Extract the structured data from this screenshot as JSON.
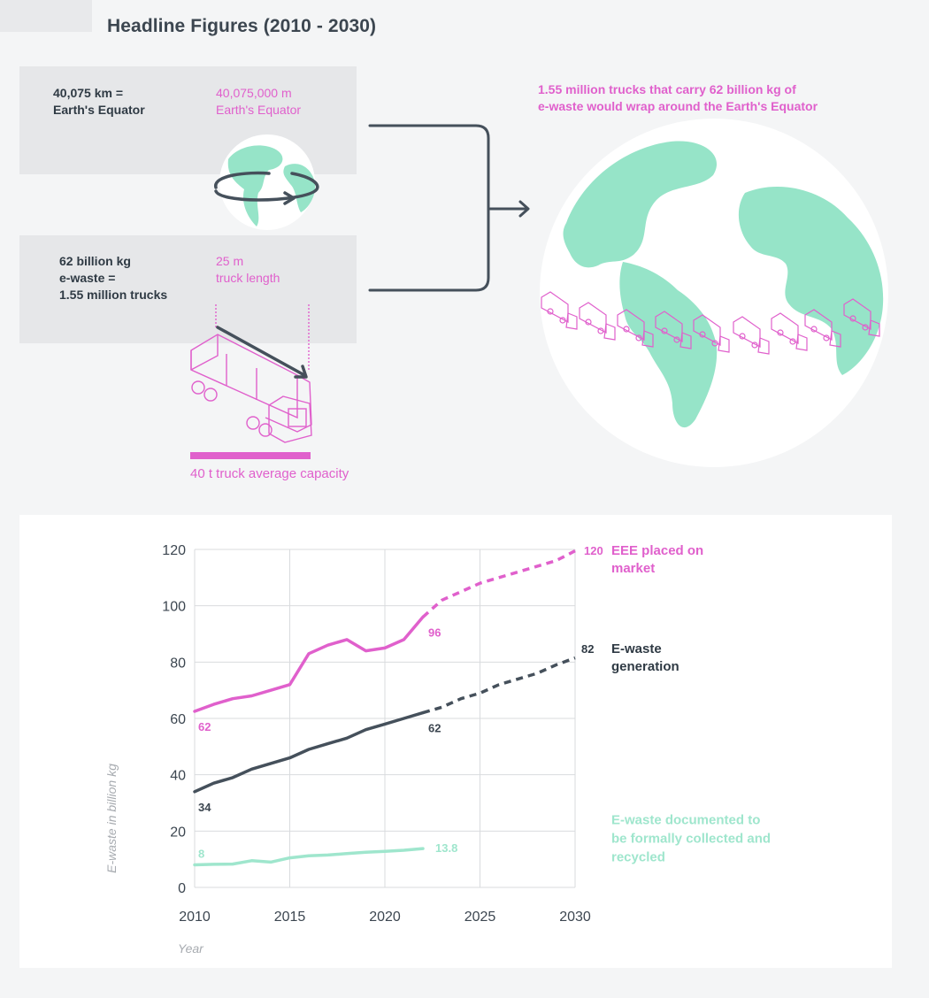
{
  "title": "Headline Figures (2010 - 2030)",
  "equator_box": {
    "left_line1": "40,075 km =",
    "left_line2": "Earth's Equator",
    "right_line1": "40,075,000 m",
    "right_line2": "Earth's Equator"
  },
  "truck_box": {
    "left_line1": "62 billion kg",
    "left_line2": "e-waste =",
    "left_line3": "1.55 million trucks",
    "right_line1": "25 m",
    "right_line2": "truck length"
  },
  "capacity_label": "40 t truck average capacity",
  "wrap_statement": {
    "line1": "1.55 million trucks that carry 62 billion kg of",
    "line2": "e-waste would wrap around the Earth's Equator"
  },
  "colors": {
    "pink": "#e060cc",
    "dark": "#45505b",
    "mint": "#9fe6cd",
    "globe_land": "#96e4c8",
    "grid": "#d9dbde",
    "axis_text": "#3c4650",
    "axis_title": "#a7abb0"
  },
  "chart_data": {
    "type": "line",
    "xlabel": "Year",
    "ylabel": "E-waste in billion kg",
    "xlim": [
      2010,
      2030
    ],
    "ylim": [
      0,
      120
    ],
    "x_ticks": [
      2010,
      2015,
      2020,
      2025,
      2030
    ],
    "y_ticks": [
      0,
      20,
      40,
      60,
      80,
      100,
      120
    ],
    "grid": true,
    "series": [
      {
        "name": "EEE placed on market",
        "color": "pink",
        "label_line1": "EEE placed on",
        "label_line2": "market",
        "end_value_label": "120",
        "points": [
          [
            2010,
            62.5
          ],
          [
            2011,
            65
          ],
          [
            2012,
            67
          ],
          [
            2013,
            68
          ],
          [
            2014,
            70
          ],
          [
            2015,
            72
          ],
          [
            2016,
            83
          ],
          [
            2017,
            86
          ],
          [
            2018,
            88
          ],
          [
            2019,
            84
          ],
          [
            2020,
            85
          ],
          [
            2021,
            88
          ],
          [
            2022,
            96
          ]
        ],
        "projected": [
          [
            2022,
            96
          ],
          [
            2023,
            102
          ],
          [
            2024,
            105
          ],
          [
            2025,
            108
          ],
          [
            2026,
            110
          ],
          [
            2027,
            112
          ],
          [
            2028,
            114
          ],
          [
            2029,
            116
          ],
          [
            2030,
            119.5
          ]
        ],
        "annotations": [
          {
            "x": 2010,
            "y": 62.5,
            "text": "62",
            "pos": "below"
          },
          {
            "x": 2022,
            "y": 96,
            "text": "96",
            "pos": "below-right"
          }
        ]
      },
      {
        "name": "E-waste generation",
        "color": "dark",
        "label_line1": "E-waste",
        "label_line2": "generation",
        "end_value_label": "82",
        "points": [
          [
            2010,
            34
          ],
          [
            2011,
            37
          ],
          [
            2012,
            39
          ],
          [
            2013,
            42
          ],
          [
            2014,
            44
          ],
          [
            2015,
            46
          ],
          [
            2016,
            49
          ],
          [
            2017,
            51
          ],
          [
            2018,
            53
          ],
          [
            2019,
            56
          ],
          [
            2020,
            58
          ],
          [
            2021,
            60
          ],
          [
            2022,
            62
          ]
        ],
        "projected": [
          [
            2022,
            62
          ],
          [
            2023,
            64
          ],
          [
            2024,
            67
          ],
          [
            2025,
            69
          ],
          [
            2026,
            72
          ],
          [
            2027,
            74
          ],
          [
            2028,
            76
          ],
          [
            2029,
            79
          ],
          [
            2030,
            81.5
          ]
        ],
        "annotations": [
          {
            "x": 2010,
            "y": 34,
            "text": "34",
            "pos": "below"
          },
          {
            "x": 2022,
            "y": 62,
            "text": "62",
            "pos": "below-right"
          }
        ]
      },
      {
        "name": "E-waste documented to be formally collected and recycled",
        "color": "mint",
        "label_line1": "E-waste documented to",
        "label_line2": "be formally collected and",
        "label_line3": "recycled",
        "end_value_label": "13.8",
        "points": [
          [
            2010,
            8
          ],
          [
            2011,
            8.2
          ],
          [
            2012,
            8.3
          ],
          [
            2013,
            9.5
          ],
          [
            2014,
            9
          ],
          [
            2015,
            10.5
          ],
          [
            2016,
            11.2
          ],
          [
            2017,
            11.5
          ],
          [
            2018,
            12
          ],
          [
            2019,
            12.5
          ],
          [
            2020,
            12.8
          ],
          [
            2021,
            13.2
          ],
          [
            2022,
            13.8
          ]
        ],
        "projected": [],
        "annotations": [
          {
            "x": 2010,
            "y": 8,
            "text": "8",
            "pos": "above"
          }
        ]
      }
    ]
  }
}
